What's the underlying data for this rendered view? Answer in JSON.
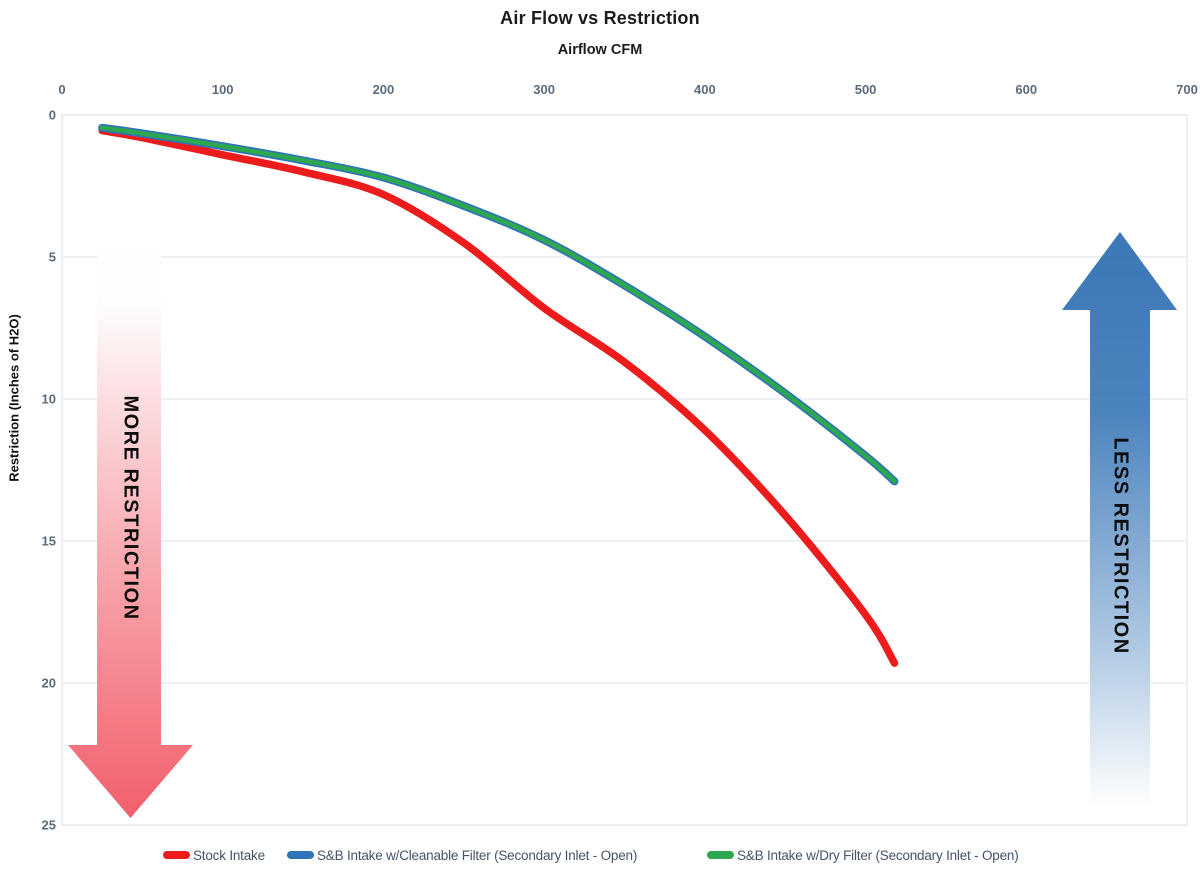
{
  "chart_data": {
    "type": "line",
    "title": "Air Flow vs Restriction",
    "x_axis": {
      "label": "Airflow CFM",
      "position": "top",
      "ticks": [
        0,
        100,
        200,
        300,
        400,
        500,
        600,
        700
      ],
      "range": [
        0,
        700
      ]
    },
    "y_axis": {
      "label": "Restriction (Inches of H2O)",
      "ticks": [
        0,
        5,
        10,
        15,
        20,
        25
      ],
      "range": [
        0,
        25
      ],
      "inverted": true
    },
    "grid": "horizontal",
    "legend_position": "bottom",
    "series": [
      {
        "name": "Stock Intake",
        "color": "#ed1c1c",
        "stroke_width": 7.5,
        "points": [
          [
            25,
            0.55
          ],
          [
            50,
            0.8
          ],
          [
            100,
            1.4
          ],
          [
            150,
            2.0
          ],
          [
            200,
            2.8
          ],
          [
            250,
            4.5
          ],
          [
            300,
            6.8
          ],
          [
            350,
            8.7
          ],
          [
            400,
            11.1
          ],
          [
            450,
            14.1
          ],
          [
            500,
            17.6
          ],
          [
            518,
            19.3
          ]
        ]
      },
      {
        "name": "S&B Intake w/Cleanable Filter (Secondary Inlet - Open)",
        "color": "#2e74b6",
        "stroke_width": 8,
        "points": [
          [
            25,
            0.45
          ],
          [
            50,
            0.65
          ],
          [
            100,
            1.1
          ],
          [
            150,
            1.6
          ],
          [
            200,
            2.2
          ],
          [
            250,
            3.2
          ],
          [
            300,
            4.4
          ],
          [
            350,
            6.0
          ],
          [
            400,
            7.8
          ],
          [
            450,
            9.8
          ],
          [
            500,
            12.0
          ],
          [
            518,
            12.9
          ]
        ]
      },
      {
        "name": "S&B Intake w/Dry Filter (Secondary Inlet - Open)",
        "color": "#2da84e",
        "stroke_width": 4.6,
        "points": [
          [
            25,
            0.45
          ],
          [
            50,
            0.65
          ],
          [
            100,
            1.1
          ],
          [
            150,
            1.6
          ],
          [
            200,
            2.2
          ],
          [
            250,
            3.2
          ],
          [
            300,
            4.4
          ],
          [
            350,
            6.0
          ],
          [
            400,
            7.8
          ],
          [
            450,
            9.8
          ],
          [
            500,
            12.0
          ],
          [
            518,
            12.9
          ]
        ]
      }
    ],
    "annotations": [
      {
        "label": "MORE RESTRICTION",
        "direction": "down",
        "color": "#f15f6c"
      },
      {
        "label": "LESS RESTRICTION",
        "direction": "up",
        "color": "#3b77b6"
      }
    ]
  },
  "legend": {
    "items": [
      {
        "label": "Stock Intake",
        "color": "#ed1c1c"
      },
      {
        "label": "S&B Intake w/Cleanable Filter (Secondary Inlet - Open)",
        "color": "#2e74b6"
      },
      {
        "label": "S&B Intake w/Dry Filter (Secondary Inlet - Open)",
        "color": "#2da84e"
      }
    ]
  },
  "colors": {
    "tick_text": "#5b6b7e",
    "legend_text": "#44546a",
    "gridline": "#e2e8ee",
    "more_arrow": "#f15f6c",
    "less_arrow": "#3b77b6"
  }
}
